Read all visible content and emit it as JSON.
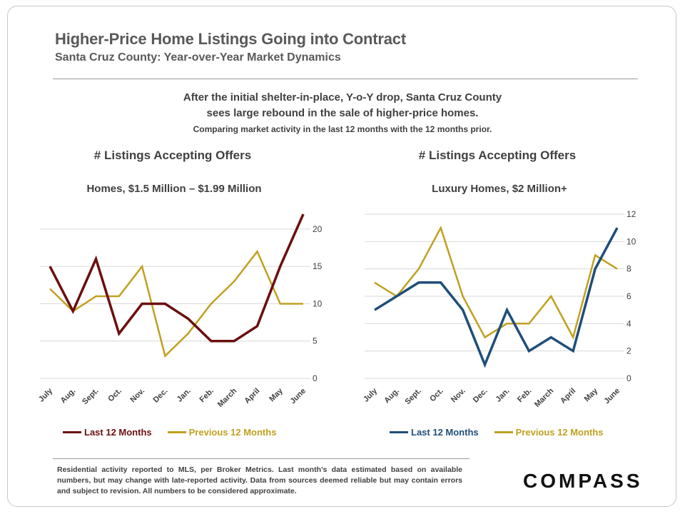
{
  "header": {
    "title": "Higher-Price Home Listings Going into Contract",
    "subtitle": "Santa Cruz County:  Year-over-Year  Market  Dynamics"
  },
  "headline": {
    "line1": "After the initial shelter-in-place, Y-o-Y drop, Santa Cruz County",
    "line2": "sees large rebound in the sale of higher-price homes.",
    "line3": "Comparing market activity in the last 12 months with the 12 months prior."
  },
  "footnote": "Residential activity reported to MLS, per Broker Metrics. Last month’s data estimated based on available numbers, but may change with late-reported activity. Data from sources deemed reliable but may contain errors and subject to revision. All numbers to be considered approximate.",
  "logo": "COMPASS",
  "chart_data": [
    {
      "type": "line",
      "title": "# Listings  Accepting  Offers",
      "subtitle": "Homes, $1.5 Million – $1.99 Million",
      "categories": [
        "July",
        "Aug.",
        "Sept.",
        "Oct.",
        "Nov.",
        "Dec.",
        "Jan.",
        "Feb.",
        "March",
        "April",
        "May",
        "June"
      ],
      "series": [
        {
          "name": "Last 12 Months",
          "color": "#6b0f0f",
          "values": [
            15,
            9,
            16,
            6,
            10,
            10,
            8,
            5,
            5,
            7,
            15,
            22
          ]
        },
        {
          "name": "Previous 12 Months",
          "color": "#c0a020",
          "values": [
            12,
            9,
            11,
            11,
            15,
            3,
            6,
            10,
            13,
            17,
            10,
            10
          ]
        }
      ],
      "ylim": [
        0,
        22
      ],
      "yticks": [
        0,
        5,
        10,
        15,
        20
      ],
      "grid": true,
      "legend": "bottom"
    },
    {
      "type": "line",
      "title": "# Listings  Accepting  Offers",
      "subtitle": "Luxury Homes, $2 Million+",
      "categories": [
        "July",
        "Aug.",
        "Sept.",
        "Oct.",
        "Nov.",
        "Dec.",
        "Jan.",
        "Feb.",
        "March",
        "April",
        "May",
        "June"
      ],
      "series": [
        {
          "name": "Last 12 Months",
          "color": "#1f4e79",
          "values": [
            5,
            6,
            7,
            7,
            5,
            1,
            5,
            2,
            3,
            2,
            8,
            11
          ]
        },
        {
          "name": "Previous 12 Months",
          "color": "#c0a020",
          "values": [
            7,
            6,
            8,
            11,
            6,
            3,
            4,
            4,
            6,
            3,
            9,
            8
          ]
        }
      ],
      "ylim": [
        0,
        12
      ],
      "yticks": [
        0,
        2,
        4,
        6,
        8,
        10,
        12
      ],
      "grid": true,
      "legend": "bottom"
    }
  ]
}
